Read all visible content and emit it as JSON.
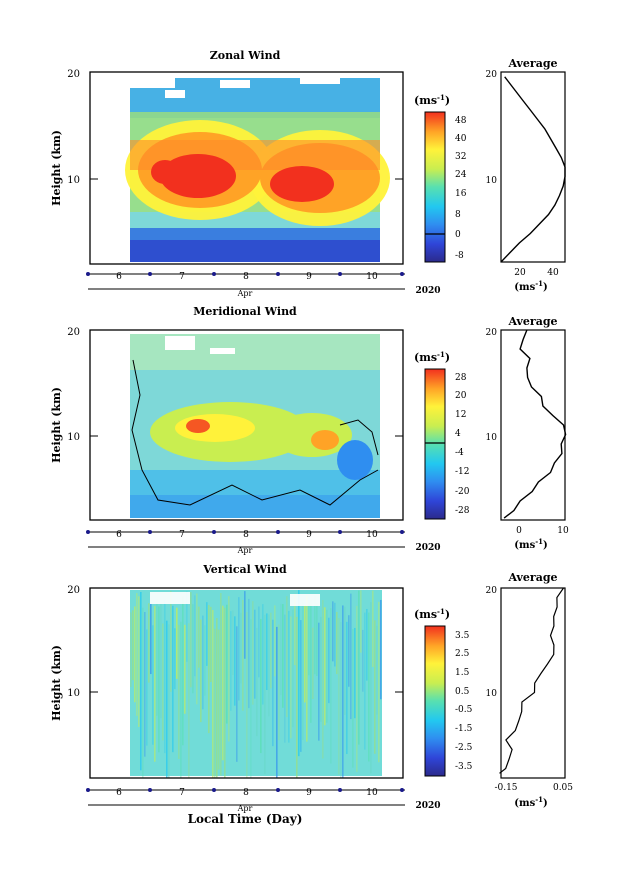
{
  "panels": [
    {
      "title": "Zonal Wind",
      "ylabel": "Height (km)",
      "yticks": [
        "20",
        "10"
      ],
      "xticks": [
        "6",
        "7",
        "8",
        "9",
        "10"
      ],
      "xunit": "Apr",
      "year": "2020",
      "cbar_unit": "(ms",
      "cbar_ticks": [
        "48",
        "40",
        "32",
        "24",
        "16",
        "8",
        "0",
        "-8"
      ],
      "avg_title": "Average",
      "avg_yticks": [
        "20",
        "10"
      ],
      "avg_xticks": [
        "20",
        "40"
      ],
      "avg_unit": "(ms"
    },
    {
      "title": "Meridional Wind",
      "ylabel": "Height (km)",
      "yticks": [
        "20",
        "10"
      ],
      "xticks": [
        "6",
        "7",
        "8",
        "9",
        "10"
      ],
      "xunit": "Apr",
      "year": "2020",
      "cbar_unit": "(ms",
      "cbar_ticks": [
        "28",
        "20",
        "12",
        "4",
        "-4",
        "-12",
        "-20",
        "-28"
      ],
      "avg_title": "Average",
      "avg_yticks": [
        "20",
        "10"
      ],
      "avg_xticks": [
        "0",
        "10"
      ],
      "avg_unit": "(ms"
    },
    {
      "title": "Vertical Wind",
      "ylabel": "Height (km)",
      "yticks": [
        "20",
        "10"
      ],
      "xticks": [
        "6",
        "7",
        "8",
        "9",
        "10"
      ],
      "xunit": "Apr",
      "year": "2020",
      "cbar_unit": "(ms",
      "cbar_ticks": [
        "3.5",
        "2.5",
        "1.5",
        "0.5",
        "-0.5",
        "-1.5",
        "-2.5",
        "-3.5"
      ],
      "avg_title": "Average",
      "avg_yticks": [
        "20",
        "10"
      ],
      "avg_xticks": [
        "-0.15",
        "0.05"
      ],
      "avg_unit": "(ms"
    }
  ],
  "unit_exponent": "-1",
  "xlabel": "Local Time (Day)",
  "chart_data": [
    {
      "type": "heatmap",
      "title": "Zonal Wind",
      "ylabel": "Height (km)",
      "ylim": [
        0,
        20
      ],
      "xlim": [
        "Apr 5",
        "Apr 10.2"
      ],
      "data_span": [
        "Apr 5.6",
        "Apr 10.3"
      ],
      "colorbar": {
        "label": "(ms-1)",
        "range": [
          -12,
          52
        ],
        "ticks": [
          48,
          40,
          32,
          24,
          16,
          8,
          0,
          -8
        ]
      },
      "features": [
        {
          "description": "jet core",
          "x": 6.9,
          "y": 10.5,
          "value": 48
        },
        {
          "description": "jet core",
          "x": 8.9,
          "y": 9.5,
          "value": 48
        }
      ],
      "average_profile": {
        "xlim": [
          10,
          45
        ],
        "ylim": [
          0,
          20
        ],
        "xlabel": "(ms-1)",
        "height": [
          0.0,
          1,
          2,
          3,
          4,
          5,
          6,
          7,
          8,
          9,
          10,
          11,
          12,
          13,
          14,
          15,
          16,
          17,
          18,
          19,
          19.5
        ],
        "speed": [
          10,
          15,
          20,
          26,
          31,
          36,
          39.5,
          42,
          44,
          45,
          45,
          43,
          40,
          37,
          34,
          30,
          26,
          22,
          18,
          14,
          12
        ]
      }
    },
    {
      "type": "heatmap",
      "title": "Meridional Wind",
      "ylabel": "Height (km)",
      "ylim": [
        0,
        20
      ],
      "colorbar": {
        "label": "(ms-1)",
        "range": [
          -32,
          32
        ],
        "ticks": [
          28,
          20,
          12,
          4,
          -4,
          -12,
          -20,
          -28
        ]
      },
      "average_profile": {
        "xlim": [
          -4,
          10
        ],
        "ylim": [
          0,
          20
        ],
        "xlabel": "(ms-1)",
        "height": [
          0.2,
          1,
          2,
          3,
          4,
          5,
          6,
          7,
          8,
          9,
          10,
          11,
          12,
          13,
          14,
          15,
          16,
          17,
          18,
          19,
          20
        ],
        "speed": [
          -3,
          -1.5,
          0.5,
          2.5,
          4.5,
          6.5,
          8,
          9,
          9.5,
          9.8,
          10,
          7,
          5.5,
          4.5,
          3,
          1.5,
          2,
          2,
          0.5,
          0.5,
          2
        ]
      }
    },
    {
      "type": "heatmap",
      "title": "Vertical Wind",
      "ylabel": "Height (km)",
      "ylim": [
        0,
        20
      ],
      "colorbar": {
        "label": "(ms-1)",
        "range": [
          -4,
          4
        ],
        "ticks": [
          3.5,
          2.5,
          1.5,
          0.5,
          -0.5,
          -1.5,
          -2.5,
          -3.5
        ]
      },
      "average_profile": {
        "xlim": [
          -0.15,
          0.05
        ],
        "ylim": [
          0,
          20
        ],
        "xlabel": "(ms-1)",
        "height": [
          0.5,
          1,
          2,
          3,
          4,
          5,
          6,
          7,
          8,
          9,
          10,
          11,
          12,
          13,
          14,
          15,
          16,
          17,
          18,
          19,
          20
        ],
        "speed": [
          -0.15,
          -0.14,
          -0.12,
          -0.12,
          -0.13,
          -0.11,
          -0.09,
          -0.09,
          -0.08,
          -0.05,
          -0.04,
          -0.03,
          0.0,
          0.01,
          0.02,
          0.0,
          0.02,
          0.01,
          0.03,
          0.02,
          0.05
        ]
      }
    }
  ]
}
